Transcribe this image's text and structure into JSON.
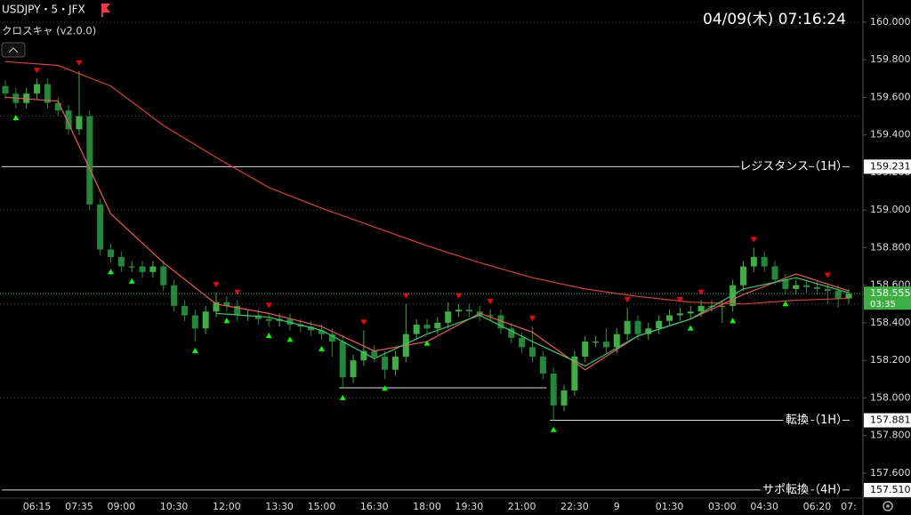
{
  "chart_data": {
    "type": "candlestick",
    "title": "USDJPY・5・JFX",
    "subtitle": "クロスキャ (v2.0.0)",
    "datetime": "04/09(木)  07:16:24",
    "up_color": "#3cb043",
    "down_color": "#1f8a3a",
    "categories": [
      null,
      null,
      null,
      "06:15",
      null,
      null,
      null,
      "07:35",
      null,
      null,
      null,
      "09:00",
      null,
      null,
      null,
      null,
      "10:30",
      null,
      null,
      null,
      null,
      "12:00",
      null,
      null,
      null,
      null,
      "13:30",
      null,
      null,
      null,
      "15:00",
      null,
      null,
      null,
      null,
      "16:30",
      null,
      null,
      null,
      null,
      "18:00",
      null,
      null,
      null,
      "19:30",
      null,
      null,
      null,
      null,
      "21:00",
      null,
      null,
      null,
      null,
      "22:30",
      null,
      null,
      null,
      "9",
      null,
      null,
      null,
      null,
      "01:30",
      null,
      null,
      null,
      null,
      "03:00",
      null,
      null,
      null,
      "04:30",
      null,
      null,
      null,
      null,
      "06:20",
      null,
      null,
      "07:"
    ],
    "open": [
      159.66,
      159.62,
      159.57,
      159.62,
      159.67,
      159.57,
      159.53,
      159.43,
      159.5,
      159.03,
      158.79,
      158.75,
      158.7,
      158.7,
      158.67,
      158.7,
      158.6,
      158.49,
      158.44,
      158.37,
      158.46,
      158.51,
      158.49,
      158.44,
      158.44,
      158.42,
      158.41,
      158.42,
      158.39,
      158.38,
      158.36,
      158.34,
      158.3,
      158.11,
      158.2,
      158.25,
      158.22,
      158.15,
      158.22,
      158.34,
      158.39,
      158.37,
      158.4,
      158.46,
      158.47,
      158.46,
      158.44,
      158.44,
      158.37,
      158.32,
      158.27,
      158.22,
      158.13,
      157.96,
      158.04,
      158.22,
      158.3,
      158.3,
      158.27,
      158.34,
      158.41,
      158.34,
      158.37,
      158.41,
      158.44,
      158.45,
      158.46,
      158.49,
      158.49,
      158.49,
      158.6,
      158.7,
      158.75,
      158.7,
      158.63,
      158.58,
      158.6,
      158.59,
      158.58,
      158.57,
      158.53
    ],
    "high": [
      159.69,
      159.65,
      159.65,
      159.7,
      159.7,
      159.6,
      159.56,
      159.74,
      159.53,
      159.06,
      158.82,
      158.78,
      158.73,
      158.73,
      158.73,
      158.73,
      158.63,
      158.52,
      158.47,
      158.49,
      158.56,
      158.54,
      158.52,
      158.47,
      158.47,
      158.45,
      158.45,
      158.45,
      158.42,
      158.41,
      158.39,
      158.37,
      158.33,
      158.23,
      158.36,
      158.28,
      158.25,
      158.25,
      158.5,
      158.42,
      158.42,
      158.43,
      158.51,
      158.5,
      158.5,
      158.49,
      158.47,
      158.47,
      158.4,
      158.35,
      158.38,
      158.25,
      158.16,
      158.07,
      158.25,
      158.33,
      158.33,
      158.37,
      158.37,
      158.48,
      158.44,
      158.4,
      158.44,
      158.47,
      158.48,
      158.49,
      158.52,
      158.52,
      158.52,
      158.63,
      158.73,
      158.8,
      158.78,
      158.73,
      158.66,
      158.63,
      158.63,
      158.62,
      158.61,
      158.6,
      158.58
    ],
    "low": [
      159.59,
      159.54,
      159.54,
      159.59,
      159.54,
      159.5,
      159.4,
      159.4,
      159.0,
      158.76,
      158.72,
      158.67,
      158.67,
      158.64,
      158.64,
      158.57,
      158.46,
      158.41,
      158.3,
      158.34,
      158.43,
      158.46,
      158.41,
      158.41,
      158.39,
      158.38,
      158.38,
      158.36,
      158.35,
      158.33,
      158.31,
      158.22,
      158.05,
      158.08,
      158.17,
      158.19,
      158.1,
      158.12,
      158.19,
      158.31,
      158.34,
      158.34,
      158.37,
      158.43,
      158.43,
      158.41,
      158.41,
      158.34,
      158.29,
      158.24,
      158.19,
      158.1,
      157.88,
      157.93,
      158.01,
      158.19,
      158.27,
      158.24,
      158.24,
      158.31,
      158.31,
      158.31,
      158.34,
      158.38,
      158.41,
      158.42,
      158.43,
      158.46,
      158.4,
      158.46,
      158.57,
      158.67,
      158.67,
      158.6,
      158.55,
      158.55,
      158.56,
      158.55,
      158.5,
      158.48,
      158.5
    ],
    "close": [
      159.62,
      159.57,
      159.62,
      159.67,
      159.57,
      159.53,
      159.43,
      159.5,
      159.03,
      158.79,
      158.75,
      158.7,
      158.7,
      158.67,
      158.7,
      158.6,
      158.49,
      158.44,
      158.37,
      158.46,
      158.51,
      158.49,
      158.44,
      158.44,
      158.42,
      158.41,
      158.42,
      158.39,
      158.38,
      158.36,
      158.34,
      158.3,
      158.11,
      158.2,
      158.25,
      158.22,
      158.15,
      158.22,
      158.34,
      158.39,
      158.37,
      158.4,
      158.46,
      158.47,
      158.46,
      158.44,
      158.44,
      158.37,
      158.32,
      158.27,
      158.22,
      158.13,
      157.96,
      158.04,
      158.22,
      158.3,
      158.3,
      158.27,
      158.34,
      158.41,
      158.34,
      158.37,
      158.41,
      158.44,
      158.45,
      158.46,
      158.49,
      158.49,
      158.49,
      158.6,
      158.7,
      158.75,
      158.7,
      158.63,
      158.58,
      158.6,
      158.59,
      158.58,
      158.57,
      158.53,
      158.555
    ],
    "series": [
      {
        "color": "#e53935",
        "x": [
          0,
          5,
          10,
          15,
          20,
          25,
          30,
          35,
          40,
          45,
          50,
          55,
          60,
          65,
          70,
          75,
          80
        ],
        "values": [
          159.79,
          159.77,
          159.66,
          159.45,
          159.28,
          159.12,
          159.01,
          158.91,
          158.81,
          158.72,
          158.64,
          158.58,
          158.54,
          158.51,
          158.5,
          158.52,
          158.53
        ]
      },
      {
        "color": "#ff5252",
        "x": [
          0,
          5,
          10,
          15,
          20,
          25,
          30,
          35,
          40,
          45,
          50,
          55,
          60,
          65,
          70,
          75,
          80
        ],
        "values": [
          159.6,
          159.58,
          158.98,
          158.72,
          158.5,
          158.45,
          158.38,
          158.25,
          158.3,
          158.45,
          158.35,
          158.15,
          158.33,
          158.42,
          158.55,
          158.66,
          158.57
        ]
      },
      {
        "color": "#2ecc71",
        "x": [
          20,
          25,
          30,
          35,
          40,
          45,
          50,
          55,
          60,
          65,
          70,
          75,
          80
        ],
        "values": [
          158.45,
          158.43,
          158.36,
          158.21,
          158.34,
          158.44,
          158.3,
          158.17,
          158.33,
          158.42,
          158.58,
          158.64,
          158.56
        ]
      }
    ],
    "sell_signals": [
      3,
      7,
      20,
      22,
      25,
      34,
      38,
      43,
      46,
      50,
      59,
      64,
      66,
      71,
      78
    ],
    "buy_signals": [
      1,
      10,
      12,
      18,
      21,
      25,
      27,
      30,
      32,
      36,
      40,
      52,
      65,
      69,
      74
    ],
    "levels": [
      {
        "label": "レジスタンス（1H）",
        "value": 159.231,
        "start": 0
      },
      {
        "label": "転換（1H）",
        "value": 157.881,
        "start": 52
      },
      {
        "label": "サポ転換（4H）",
        "value": 157.51,
        "value_label": "157.510",
        "start": 0
      },
      {
        "value": 158.054,
        "start": 32,
        "end": 51
      }
    ],
    "last_price": {
      "value": 158.555,
      "countdown": "03:35"
    },
    "ylim": [
      157.467,
      160.118
    ],
    "yticks": [
      {
        "value": 157.6,
        "label": "157.600"
      },
      {
        "value": 157.8,
        "label": "157.800"
      },
      {
        "value": 158.0,
        "label": "158.000"
      },
      {
        "value": 158.2,
        "label": "158.200"
      },
      {
        "value": 158.4,
        "label": "158.400"
      },
      {
        "value": 158.6,
        "label": "158.600"
      },
      {
        "value": 158.8,
        "label": "158.800"
      },
      {
        "value": 159.0,
        "label": "159.000"
      },
      {
        "value": 159.2,
        "label": "159.200"
      },
      {
        "value": 159.4,
        "label": "159.400"
      },
      {
        "value": 159.6,
        "label": "159.600"
      },
      {
        "value": 159.8,
        "label": "159.800"
      },
      {
        "value": 160.0,
        "label": "160.000"
      }
    ],
    "grid_levels": [
      158.0,
      158.5,
      159.0,
      159.5,
      160.0
    ]
  }
}
